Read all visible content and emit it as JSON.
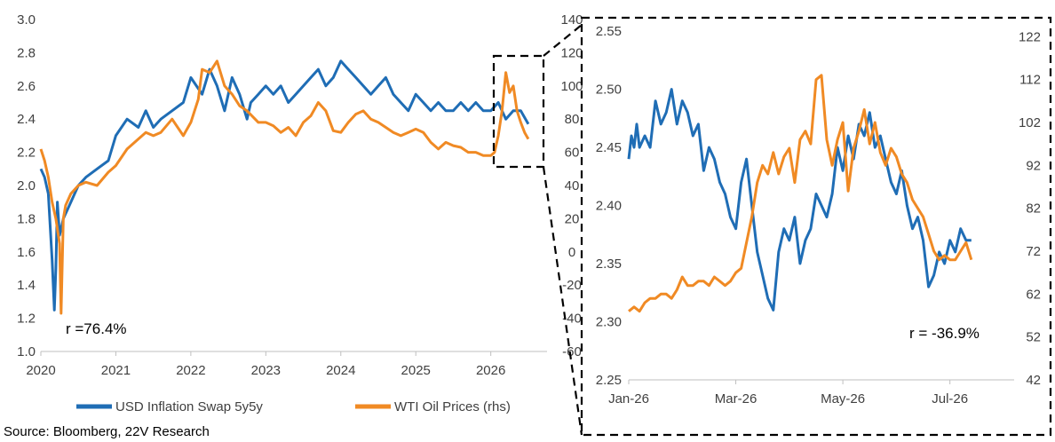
{
  "colors": {
    "series1": "#1f6db5",
    "series2": "#f08a24",
    "axis": "#bfbfbf",
    "text": "#404040"
  },
  "legend": {
    "series1": "USD Inflation Swap 5y5y",
    "series2": "WTI Oil Prices (rhs)"
  },
  "source": "Source: Bloomberg, 22V Research",
  "chart_data": [
    {
      "type": "line",
      "title": "",
      "x_ticks": [
        "2020",
        "2021",
        "2022",
        "2023",
        "2024",
        "2025",
        "2026"
      ],
      "y_ticks": [
        "1.0",
        "1.2",
        "1.4",
        "1.6",
        "1.8",
        "2.0",
        "2.2",
        "2.4",
        "2.6",
        "2.8",
        "3.0"
      ],
      "y2_ticks": [
        "-60",
        "-40",
        "-20",
        "0",
        "20",
        "40",
        "60",
        "80",
        "100",
        "120",
        "140"
      ],
      "xlim": [
        2020.0,
        2026.75
      ],
      "ylim": [
        1.0,
        3.0
      ],
      "y2lim": [
        -60,
        140
      ],
      "annotation": "r =76.4%",
      "series": [
        {
          "name": "USD Inflation Swap 5y5y",
          "axis": "left",
          "x": [
            2020.0,
            2020.05,
            2020.1,
            2020.15,
            2020.18,
            2020.2,
            2020.22,
            2020.25,
            2020.3,
            2020.35,
            2020.4,
            2020.5,
            2020.6,
            2020.75,
            2020.9,
            2021.0,
            2021.15,
            2021.3,
            2021.4,
            2021.5,
            2021.6,
            2021.75,
            2021.9,
            2022.0,
            2022.15,
            2022.25,
            2022.35,
            2022.45,
            2022.55,
            2022.65,
            2022.75,
            2022.8,
            2022.9,
            2023.0,
            2023.1,
            2023.2,
            2023.3,
            2023.4,
            2023.5,
            2023.6,
            2023.7,
            2023.8,
            2023.9,
            2024.0,
            2024.1,
            2024.2,
            2024.3,
            2024.4,
            2024.5,
            2024.6,
            2024.7,
            2024.8,
            2024.9,
            2025.0,
            2025.1,
            2025.2,
            2025.3,
            2025.4,
            2025.5,
            2025.6,
            2025.7,
            2025.8,
            2025.9,
            2026.0,
            2026.1,
            2026.2,
            2026.3,
            2026.4,
            2026.5
          ],
          "y": [
            2.1,
            2.05,
            1.95,
            1.55,
            1.25,
            1.5,
            1.9,
            1.7,
            1.8,
            1.85,
            1.9,
            2.0,
            2.05,
            2.1,
            2.15,
            2.3,
            2.4,
            2.35,
            2.45,
            2.35,
            2.4,
            2.45,
            2.5,
            2.65,
            2.55,
            2.7,
            2.6,
            2.45,
            2.65,
            2.55,
            2.4,
            2.5,
            2.55,
            2.6,
            2.55,
            2.6,
            2.5,
            2.55,
            2.6,
            2.65,
            2.7,
            2.6,
            2.65,
            2.75,
            2.7,
            2.65,
            2.6,
            2.55,
            2.6,
            2.65,
            2.55,
            2.5,
            2.45,
            2.55,
            2.5,
            2.45,
            2.5,
            2.45,
            2.45,
            2.5,
            2.45,
            2.5,
            2.45,
            2.45,
            2.5,
            2.4,
            2.45,
            2.45,
            2.37
          ]
        },
        {
          "name": "WTI Oil Prices (rhs)",
          "axis": "right",
          "x": [
            2020.0,
            2020.05,
            2020.1,
            2020.15,
            2020.2,
            2020.25,
            2020.27,
            2020.3,
            2020.33,
            2020.4,
            2020.5,
            2020.6,
            2020.75,
            2020.9,
            2021.0,
            2021.15,
            2021.3,
            2021.4,
            2021.5,
            2021.6,
            2021.75,
            2021.9,
            2022.0,
            2022.1,
            2022.15,
            2022.25,
            2022.35,
            2022.45,
            2022.55,
            2022.65,
            2022.75,
            2022.9,
            2023.0,
            2023.1,
            2023.2,
            2023.3,
            2023.4,
            2023.5,
            2023.6,
            2023.7,
            2023.8,
            2023.9,
            2024.0,
            2024.1,
            2024.2,
            2024.3,
            2024.4,
            2024.5,
            2024.6,
            2024.7,
            2024.8,
            2024.9,
            2025.0,
            2025.1,
            2025.2,
            2025.3,
            2025.4,
            2025.5,
            2025.6,
            2025.7,
            2025.8,
            2025.9,
            2026.0,
            2026.05,
            2026.1,
            2026.15,
            2026.2,
            2026.25,
            2026.3,
            2026.35,
            2026.4,
            2026.45,
            2026.5
          ],
          "y": [
            62,
            55,
            45,
            30,
            20,
            5,
            -37,
            20,
            28,
            35,
            40,
            42,
            40,
            48,
            52,
            62,
            68,
            72,
            70,
            72,
            80,
            70,
            78,
            92,
            110,
            108,
            115,
            100,
            95,
            88,
            85,
            78,
            78,
            76,
            72,
            75,
            70,
            78,
            82,
            90,
            85,
            73,
            72,
            78,
            83,
            85,
            80,
            78,
            75,
            72,
            70,
            72,
            74,
            72,
            66,
            62,
            66,
            64,
            63,
            60,
            60,
            58,
            58,
            60,
            70,
            85,
            108,
            96,
            100,
            85,
            78,
            72,
            68
          ]
        }
      ]
    },
    {
      "type": "line",
      "title": "",
      "x_ticks": [
        "Jan-26",
        "Mar-26",
        "May-26",
        "Jul-26"
      ],
      "y_ticks": [
        "2.25",
        "2.30",
        "2.35",
        "2.40",
        "2.45",
        "2.50",
        "2.55"
      ],
      "y2_ticks": [
        "42",
        "52",
        "62",
        "72",
        "82",
        "92",
        "102",
        "112",
        "122"
      ],
      "xlim": [
        0,
        7.2
      ],
      "ylim": [
        2.25,
        2.56
      ],
      "y2lim": [
        42,
        126
      ],
      "x_unit": "months since Jan-26",
      "annotation": "r =   -36.9%",
      "series": [
        {
          "name": "USD Inflation Swap 5y5y",
          "axis": "left",
          "x": [
            0.0,
            0.05,
            0.1,
            0.15,
            0.2,
            0.3,
            0.4,
            0.5,
            0.6,
            0.7,
            0.8,
            0.9,
            1.0,
            1.1,
            1.2,
            1.3,
            1.4,
            1.5,
            1.6,
            1.7,
            1.8,
            1.9,
            2.0,
            2.1,
            2.2,
            2.3,
            2.4,
            2.5,
            2.6,
            2.7,
            2.8,
            2.9,
            3.0,
            3.1,
            3.2,
            3.3,
            3.4,
            3.5,
            3.6,
            3.7,
            3.8,
            3.9,
            4.0,
            4.1,
            4.2,
            4.3,
            4.4,
            4.5,
            4.6,
            4.7,
            4.8,
            4.9,
            5.0,
            5.1,
            5.2,
            5.3,
            5.4,
            5.5,
            5.6,
            5.7,
            5.8,
            5.9,
            6.0,
            6.1,
            6.2,
            6.3,
            6.4
          ],
          "y": [
            2.44,
            2.46,
            2.45,
            2.47,
            2.45,
            2.46,
            2.45,
            2.49,
            2.47,
            2.48,
            2.5,
            2.47,
            2.49,
            2.48,
            2.46,
            2.47,
            2.43,
            2.45,
            2.44,
            2.42,
            2.41,
            2.39,
            2.38,
            2.42,
            2.44,
            2.4,
            2.36,
            2.34,
            2.32,
            2.31,
            2.36,
            2.38,
            2.37,
            2.39,
            2.35,
            2.37,
            2.38,
            2.41,
            2.4,
            2.39,
            2.41,
            2.45,
            2.43,
            2.46,
            2.44,
            2.47,
            2.46,
            2.48,
            2.45,
            2.46,
            2.44,
            2.42,
            2.41,
            2.43,
            2.4,
            2.38,
            2.39,
            2.37,
            2.33,
            2.34,
            2.36,
            2.35,
            2.37,
            2.36,
            2.38,
            2.37,
            2.37
          ]
        },
        {
          "name": "WTI Oil Prices (rhs)",
          "axis": "right",
          "x": [
            0.0,
            0.1,
            0.2,
            0.3,
            0.4,
            0.5,
            0.6,
            0.7,
            0.8,
            0.9,
            1.0,
            1.1,
            1.2,
            1.3,
            1.4,
            1.5,
            1.6,
            1.7,
            1.8,
            1.9,
            2.0,
            2.1,
            2.2,
            2.3,
            2.4,
            2.5,
            2.6,
            2.7,
            2.8,
            2.9,
            3.0,
            3.1,
            3.2,
            3.3,
            3.4,
            3.5,
            3.6,
            3.7,
            3.8,
            3.9,
            4.0,
            4.1,
            4.2,
            4.3,
            4.4,
            4.5,
            4.6,
            4.7,
            4.8,
            4.9,
            5.0,
            5.1,
            5.2,
            5.3,
            5.4,
            5.5,
            5.6,
            5.7,
            5.8,
            5.9,
            6.0,
            6.1,
            6.2,
            6.3,
            6.4
          ],
          "y": [
            58,
            59,
            58,
            60,
            61,
            61,
            62,
            62,
            61,
            63,
            66,
            64,
            64,
            65,
            65,
            64,
            66,
            65,
            64,
            65,
            67,
            68,
            74,
            80,
            88,
            92,
            90,
            95,
            90,
            94,
            96,
            88,
            98,
            100,
            97,
            112,
            113,
            98,
            92,
            98,
            102,
            86,
            96,
            100,
            105,
            97,
            102,
            95,
            92,
            96,
            94,
            90,
            88,
            84,
            82,
            80,
            76,
            72,
            70,
            71,
            70,
            70,
            72,
            74,
            70
          ]
        }
      ]
    }
  ]
}
